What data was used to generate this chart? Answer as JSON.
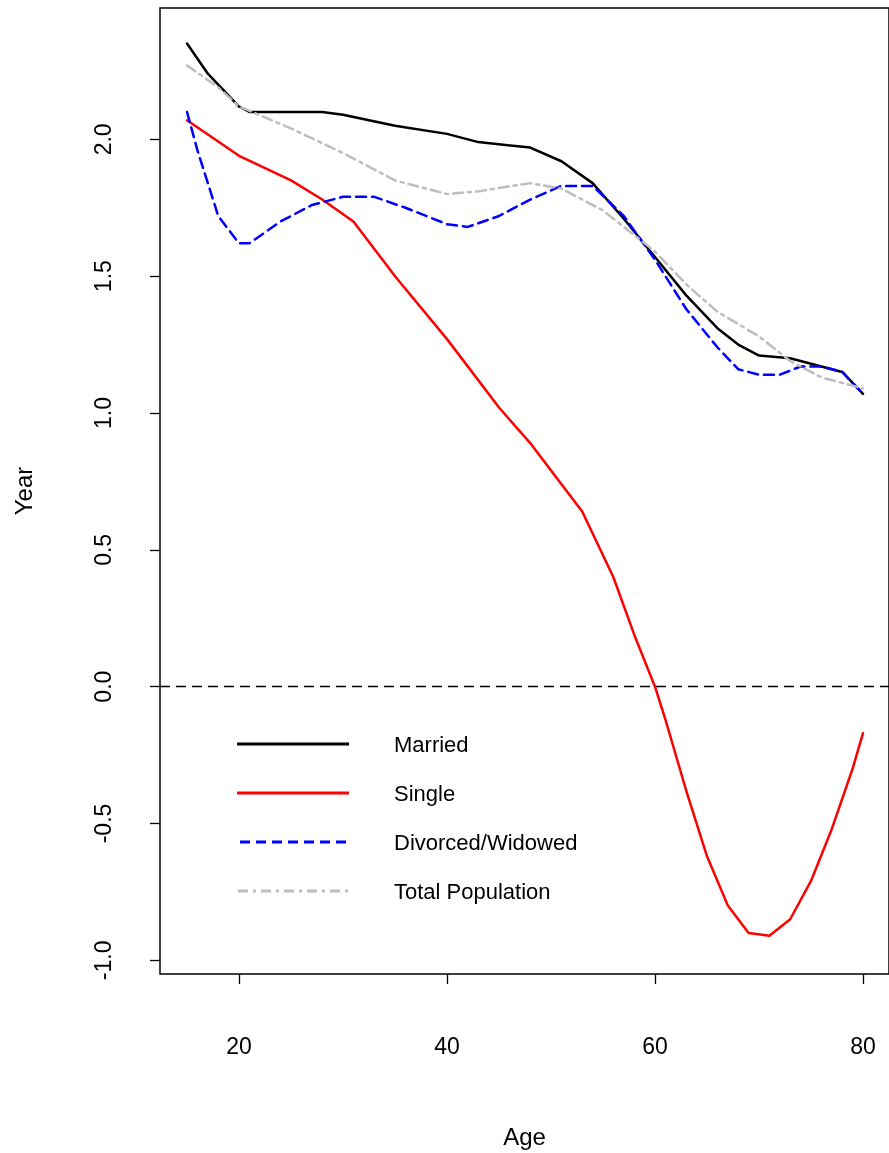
{
  "chart_data": {
    "type": "line",
    "xlabel": "Age",
    "ylabel": "Year",
    "xlim": [
      12.4,
      82.5
    ],
    "ylim": [
      -1.05,
      2.48
    ],
    "xticks": [
      20,
      40,
      60,
      80
    ],
    "yticks": [
      {
        "value": -1,
        "label": "-1.0"
      },
      {
        "value": -0.5,
        "label": "-0.5"
      },
      {
        "value": 0,
        "label": "0.0"
      },
      {
        "value": 0.5,
        "label": "0.5"
      },
      {
        "value": 1,
        "label": "1.0"
      },
      {
        "value": 1.5,
        "label": "1.5"
      },
      {
        "value": 2,
        "label": "2.0"
      }
    ],
    "grid": false,
    "legend": "bottom left",
    "marker": "none",
    "ref_lines": [
      {
        "axis": "y",
        "value": 0,
        "label": null,
        "color": "#000000",
        "line_style": "dashed"
      }
    ],
    "series": [
      {
        "name": "Married",
        "color": "#000000",
        "line_style": "solid",
        "x": [
          15,
          17,
          20,
          21,
          28,
          30,
          35,
          40,
          43,
          48,
          51,
          54,
          57,
          60,
          63,
          66,
          68,
          70,
          73,
          76,
          78,
          80
        ],
        "values": [
          2.35,
          2.24,
          2.12,
          2.1,
          2.1,
          2.09,
          2.05,
          2.02,
          1.99,
          1.97,
          1.92,
          1.84,
          1.71,
          1.57,
          1.43,
          1.31,
          1.25,
          1.21,
          1.2,
          1.17,
          1.15,
          1.07
        ]
      },
      {
        "name": "Single",
        "color": "#ff0000",
        "line_style": "solid",
        "x": [
          15,
          20,
          25,
          28,
          31,
          35,
          40,
          45,
          48,
          50,
          53,
          56,
          58,
          60,
          61,
          63,
          65,
          67,
          69,
          71,
          73,
          75,
          77,
          79,
          80
        ],
        "values": [
          2.07,
          1.94,
          1.85,
          1.78,
          1.7,
          1.5,
          1.27,
          1.02,
          0.89,
          0.79,
          0.64,
          0.4,
          0.19,
          0,
          -0.12,
          -0.38,
          -0.62,
          -0.8,
          -0.9,
          -0.91,
          -0.85,
          -0.71,
          -0.52,
          -0.3,
          -0.17
        ]
      },
      {
        "name": "Divorced/Widowed",
        "color": "#0000ff",
        "line_style": "dashed",
        "x": [
          15,
          16,
          18,
          20,
          21,
          24,
          27,
          30,
          33,
          36,
          40,
          42,
          45,
          48,
          51,
          54,
          57,
          60,
          63,
          66,
          68,
          70,
          72,
          74,
          76,
          78,
          80
        ],
        "values": [
          2.1,
          1.96,
          1.72,
          1.62,
          1.62,
          1.7,
          1.76,
          1.79,
          1.79,
          1.75,
          1.69,
          1.68,
          1.72,
          1.78,
          1.83,
          1.83,
          1.72,
          1.56,
          1.38,
          1.24,
          1.16,
          1.14,
          1.14,
          1.17,
          1.17,
          1.15,
          1.07
        ]
      },
      {
        "name": "Total Population",
        "color": "#bebebe",
        "line_style": "dashdot",
        "x": [
          15,
          18,
          20,
          25,
          30,
          35,
          40,
          43,
          48,
          51,
          55,
          58,
          60,
          63,
          66,
          70,
          73,
          76,
          80
        ],
        "values": [
          2.27,
          2.19,
          2.12,
          2.04,
          1.95,
          1.85,
          1.8,
          1.81,
          1.84,
          1.82,
          1.74,
          1.65,
          1.59,
          1.47,
          1.37,
          1.28,
          1.19,
          1.13,
          1.09
        ]
      }
    ]
  }
}
